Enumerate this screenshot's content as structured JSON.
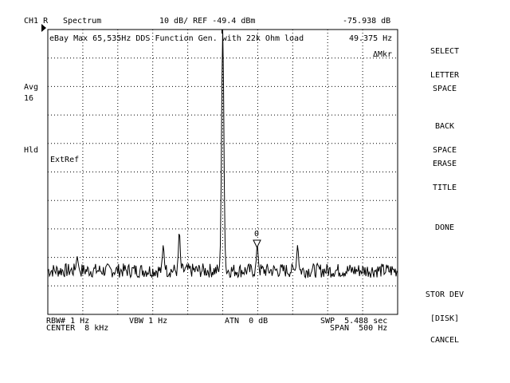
{
  "header": {
    "channel": "CH1 R",
    "mode": "Spectrum",
    "scale_ref": "10 dB/ REF -49.4 dBm",
    "marker_readout": "-75.938 dB"
  },
  "trace_title": "eBay Max 65,535Hz DDS Function Gen. with 22k Ohm load",
  "marker_freq": "49.375 Hz",
  "delta_marker": "ΔMkr",
  "left_annotations": {
    "avg_label": "Avg",
    "avg_value": "16",
    "hold": "Hld"
  },
  "ext_ref": "ExtRef",
  "marker_label": "0",
  "footer": {
    "rbw": "RBW# 1 Hz",
    "vbw": "VBW 1 Hz",
    "atn": "ATN  0 dB",
    "swp": "SWP  5.488 sec",
    "center": "CENTER  8 kHz",
    "span": "SPAN  500 Hz"
  },
  "softkeys": [
    {
      "id": "select-letter",
      "line1": "SELECT",
      "line2": "LETTER"
    },
    {
      "id": "space",
      "line1": "SPACE",
      "line2": ""
    },
    {
      "id": "back-space",
      "line1": "BACK",
      "line2": "SPACE"
    },
    {
      "id": "erase-title",
      "line1": "ERASE",
      "line2": "TITLE"
    },
    {
      "id": "done",
      "line1": "DONE",
      "line2": ""
    },
    {
      "id": "stor-dev",
      "line1": "STOR DEV",
      "line2": "[DISK]"
    },
    {
      "id": "cancel",
      "line1": "CANCEL",
      "line2": ""
    }
  ],
  "chart_data": {
    "type": "line",
    "title": "eBay Max 65,535Hz DDS Function Gen. with 22k Ohm load",
    "x_center_hz": 8000,
    "x_span_hz": 500,
    "xlim": [
      7750,
      8250
    ],
    "ylabel": "10 dB/div",
    "ref_level_dbm": -49.4,
    "ylim_dbm": [
      -149.4,
      -49.4
    ],
    "grid": true,
    "noise_floor_dbm": -134,
    "peaks": [
      {
        "x": 8000,
        "y": -49.4
      },
      {
        "x": 8049.4,
        "y": -125
      },
      {
        "x": 7915,
        "y": -125
      },
      {
        "x": 8107,
        "y": -125
      },
      {
        "x": 7938,
        "y": -120
      },
      {
        "x": 7792,
        "y": -129
      }
    ],
    "marker": {
      "x": 8049.4,
      "delta_db": -75.938
    }
  }
}
